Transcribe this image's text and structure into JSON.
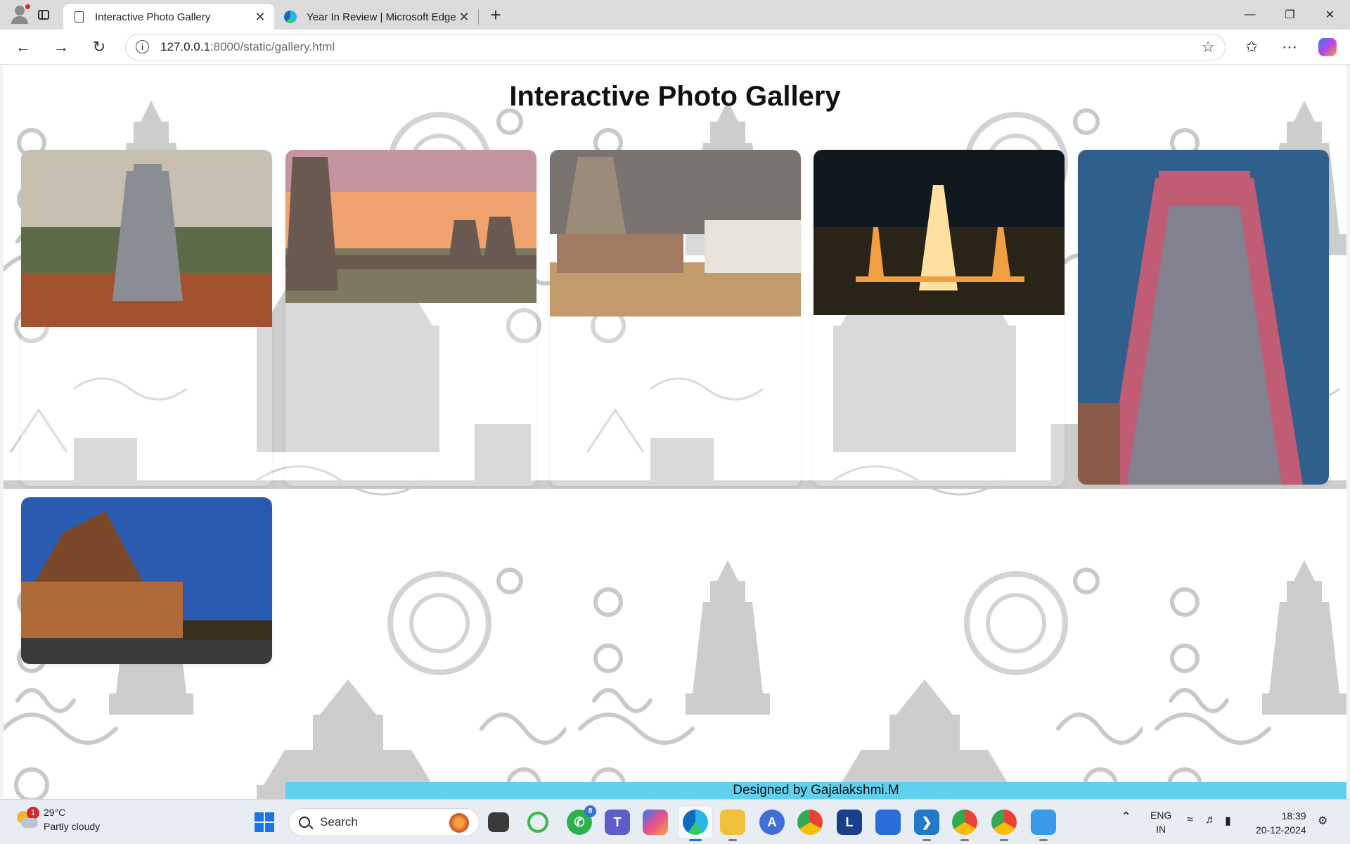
{
  "browser": {
    "tabs": [
      {
        "title": "Interactive Photo Gallery",
        "active": true,
        "icon": "page-icon"
      },
      {
        "title": "Year In Review | Microsoft Edge",
        "active": false,
        "icon": "edge-icon"
      }
    ],
    "url_host": "127.0.0.1",
    "url_rest": ":8000/static/gallery.html",
    "window_controls": [
      "minimize-icon",
      "restore-icon",
      "close-icon"
    ]
  },
  "page": {
    "title": "Interactive Photo Gallery",
    "footer": "Designed by Gajalakshmi.M",
    "photos": [
      {
        "name": "seaside-temple-tower",
        "colors": [
          "#c7c0b0",
          "#8a8e94",
          "#5d6b48",
          "#a2522f"
        ]
      },
      {
        "name": "temple-tank-sunset",
        "colors": [
          "#f0a36f",
          "#a78bc0",
          "#6a5950",
          "#7f7860"
        ]
      },
      {
        "name": "temple-street-cloudy",
        "colors": [
          "#7a7470",
          "#c29a6b",
          "#9b8b7a",
          "#a27a62"
        ]
      },
      {
        "name": "temple-night-aerial",
        "colors": [
          "#101820",
          "#2a2418",
          "#f0a040",
          "#ffe0a0"
        ]
      },
      {
        "name": "colorful-gopuram",
        "colors": [
          "#2f5f8a",
          "#c05c74",
          "#4fa0a8",
          "#8a5a48"
        ]
      },
      {
        "name": "brihadeeswara-temple",
        "colors": [
          "#2a5bb0",
          "#7a4828",
          "#b06a38",
          "#3a3a3a"
        ]
      }
    ]
  },
  "taskbar": {
    "weather_temp": "29°C",
    "weather_desc": "Partly cloudy",
    "weather_badge": "1",
    "search_placeholder": "Search",
    "whatsapp_badge": "8",
    "lang_line1": "ENG",
    "lang_line2": "IN",
    "time": "18:39",
    "date": "20-12-2024"
  }
}
